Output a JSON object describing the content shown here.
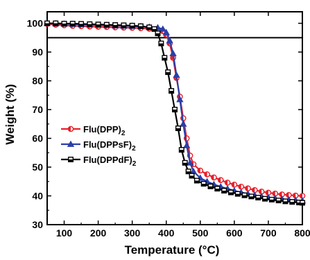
{
  "chart_data": {
    "type": "line",
    "xlabel": "Temperature (°C)",
    "ylabel": "Weight (%)",
    "xlim": [
      50,
      800
    ],
    "ylim": [
      30,
      104
    ],
    "xticks": [
      100,
      200,
      300,
      400,
      500,
      600,
      700,
      800
    ],
    "yticks": [
      30,
      40,
      50,
      60,
      70,
      80,
      90,
      100
    ],
    "grid": false,
    "legend_position": "center-left",
    "reference_line_y": 95,
    "series": [
      {
        "name": "Flu(DPP)",
        "name_subscript": "2",
        "color": "#e8202a",
        "marker": "circle-half-filled",
        "x": [
          50,
          75,
          100,
          125,
          150,
          175,
          200,
          225,
          250,
          275,
          300,
          325,
          350,
          375,
          390,
          400,
          410,
          420,
          430,
          440,
          450,
          460,
          470,
          480,
          500,
          520,
          540,
          560,
          580,
          600,
          620,
          640,
          660,
          680,
          700,
          720,
          740,
          760,
          780,
          800
        ],
        "y": [
          99.8,
          99.5,
          99.3,
          99.1,
          99.0,
          98.9,
          98.8,
          98.7,
          98.6,
          98.5,
          98.4,
          98.3,
          98.1,
          97.8,
          97.3,
          96.0,
          93.0,
          88.0,
          81.0,
          74.5,
          67.0,
          60.0,
          54.0,
          51.0,
          48.8,
          47.5,
          46.4,
          45.5,
          44.6,
          43.9,
          43.2,
          42.6,
          42.0,
          41.5,
          41.1,
          40.8,
          40.5,
          40.3,
          40.1,
          40.0
        ]
      },
      {
        "name": "Flu(DPPsF)",
        "name_subscript": "2",
        "color": "#2a3fa8",
        "marker": "triangle",
        "x": [
          50,
          75,
          100,
          125,
          150,
          175,
          200,
          225,
          250,
          275,
          300,
          325,
          350,
          375,
          390,
          400,
          410,
          420,
          430,
          440,
          450,
          460,
          470,
          480,
          500,
          520,
          540,
          560,
          580,
          600,
          620,
          640,
          660,
          680,
          700,
          720,
          740,
          760,
          780,
          800
        ],
        "y": [
          100.0,
          99.9,
          99.8,
          99.7,
          99.6,
          99.5,
          99.4,
          99.3,
          99.2,
          99.1,
          99.0,
          98.9,
          98.7,
          98.5,
          98.0,
          96.8,
          94.0,
          89.5,
          82.0,
          73.5,
          65.0,
          57.5,
          51.5,
          48.5,
          46.2,
          45.0,
          44.0,
          43.2,
          42.5,
          41.8,
          41.2,
          40.7,
          40.2,
          39.8,
          39.4,
          39.1,
          38.9,
          38.7,
          38.5,
          38.3
        ]
      },
      {
        "name": "Flu(DPPdF)",
        "name_subscript": "2",
        "color": "#000000",
        "marker": "square-half-filled",
        "x": [
          50,
          75,
          100,
          125,
          150,
          175,
          200,
          225,
          250,
          275,
          300,
          325,
          350,
          365,
          375,
          385,
          395,
          405,
          415,
          425,
          435,
          445,
          455,
          465,
          475,
          490,
          510,
          530,
          550,
          570,
          590,
          610,
          630,
          650,
          670,
          690,
          710,
          730,
          750,
          770,
          790,
          800
        ],
        "y": [
          100.0,
          100.0,
          99.9,
          99.9,
          99.8,
          99.7,
          99.6,
          99.5,
          99.4,
          99.3,
          99.2,
          99.0,
          98.6,
          98.0,
          96.5,
          93.0,
          88.0,
          83.0,
          76.5,
          70.0,
          63.5,
          56.0,
          51.5,
          48.5,
          47.0,
          45.3,
          44.2,
          43.3,
          42.5,
          41.8,
          41.2,
          40.7,
          40.2,
          39.8,
          39.4,
          39.0,
          38.7,
          38.4,
          38.1,
          37.9,
          37.7,
          37.6
        ]
      }
    ]
  }
}
